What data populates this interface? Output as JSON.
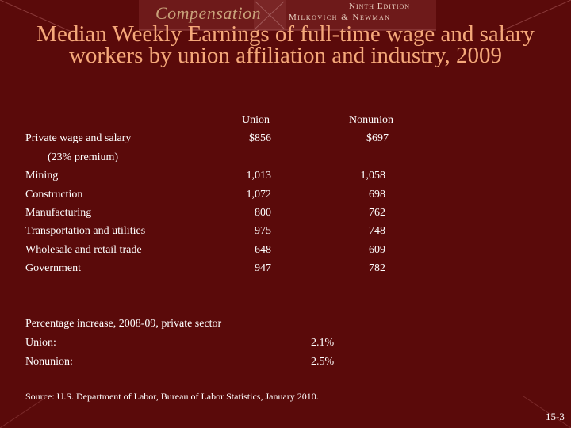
{
  "header": {
    "brand": "Compensation",
    "edition": "Ninth Edition",
    "authors": "Milkovich & Newman"
  },
  "colors": {
    "background": "#5a0a0a",
    "title": "#f5a87a",
    "text": "#ffffff"
  },
  "slide": {
    "title": "Median Weekly Earnings of full-time wage and salary workers by union affiliation and industry, 2009",
    "table": {
      "columns": [
        "Union",
        "Nonunion"
      ],
      "rows": [
        {
          "label": "Private wage and salary",
          "union": "$856",
          "nonunion": "$697"
        },
        {
          "label": "(23% premium)",
          "union": "",
          "nonunion": ""
        },
        {
          "label": "Mining",
          "union": "1,013",
          "nonunion": "1,058"
        },
        {
          "label": "Construction",
          "union": "1,072",
          "nonunion": "698"
        },
        {
          "label": "Manufacturing",
          "union": "800",
          "nonunion": "762"
        },
        {
          "label": "Transportation and utilities",
          "union": "975",
          "nonunion": "748"
        },
        {
          "label": "Wholesale and retail trade",
          "union": "648",
          "nonunion": "609"
        },
        {
          "label": "Government",
          "union": "947",
          "nonunion": "782"
        }
      ]
    },
    "increase": {
      "heading": "Percentage increase, 2008-09, private sector",
      "union_label": "Union:",
      "union_value": "2.1%",
      "nonunion_label": "Nonunion:",
      "nonunion_value": "2.5%"
    },
    "source": "Source: U.S. Department of Labor, Bureau of Labor Statistics, January 2010.",
    "page_number": "15-3"
  }
}
